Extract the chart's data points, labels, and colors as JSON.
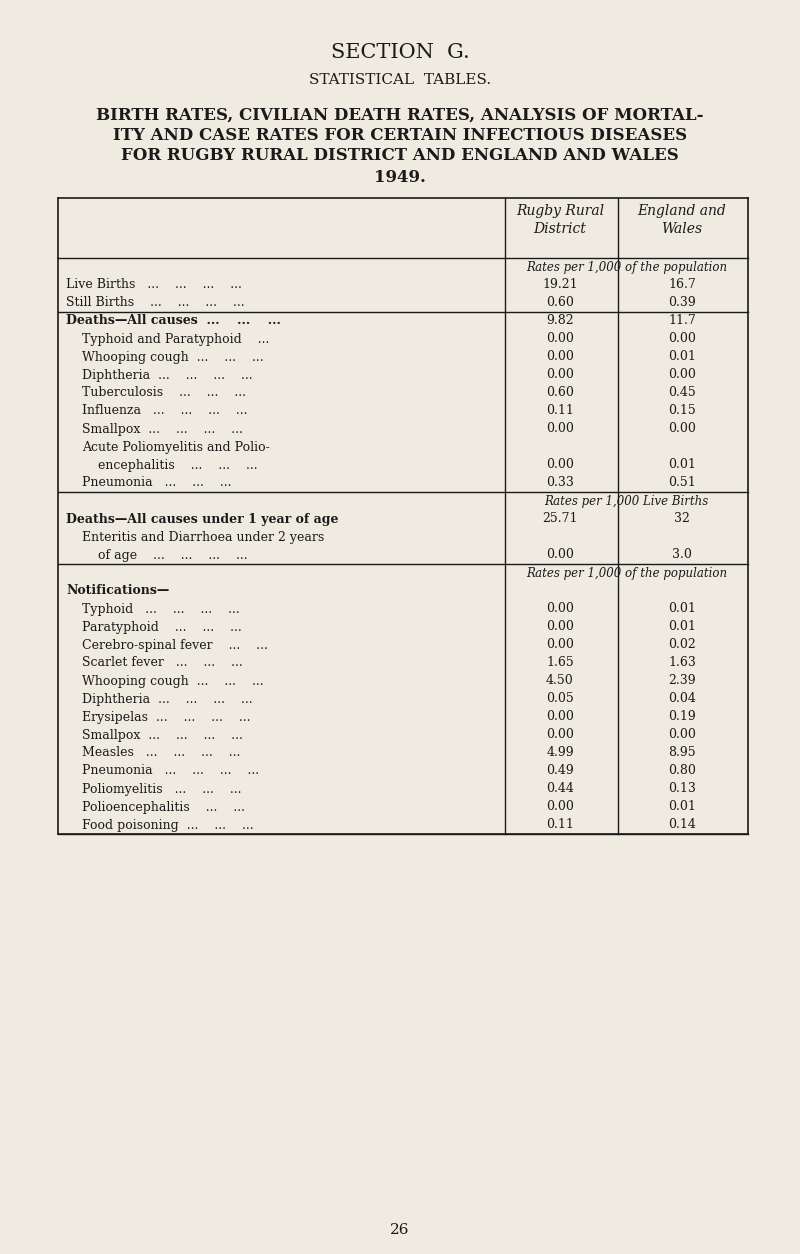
{
  "section_title": "SECTION  G.",
  "section_subtitle": "STATISTICAL  TABLES.",
  "main_title_line1": "BIRTH RATES, CIVILIAN DEATH RATES, ANALYSIS OF MORTAL-",
  "main_title_line2": "ITY AND CASE RATES FOR CERTAIN INFECTIOUS DISEASES",
  "main_title_line3": "FOR RUGBY RURAL DISTRICT AND ENGLAND AND WALES",
  "main_title_line4": "1949.",
  "col_header1": "Rugby Rural\nDistrict",
  "col_header2": "England and\nWales",
  "background_color": "#f0ebe0",
  "text_color": "#1a1a1a",
  "page_number": "26",
  "sections": [
    {
      "header_text": "Rates per 1,000 of the population",
      "rows": [
        {
          "label": "Live Births   ...    ...    ...    ...",
          "bold": false,
          "indent": 0,
          "v1": "19.21",
          "v2": "16.7"
        },
        {
          "label": "Still Births    ...    ...    ...    ...",
          "bold": false,
          "indent": 0,
          "v1": "0.60",
          "v2": "0.39"
        }
      ]
    },
    {
      "header_text": null,
      "rows": [
        {
          "label": "Deaths—All causes  ...    ...    ...",
          "bold": true,
          "indent": 0,
          "v1": "9.82",
          "v2": "11.7"
        },
        {
          "label": "Typhoid and Paratyphoid    ...",
          "bold": false,
          "indent": 1,
          "v1": "0.00",
          "v2": "0.00"
        },
        {
          "label": "Whooping cough  ...    ...    ...",
          "bold": false,
          "indent": 1,
          "v1": "0.00",
          "v2": "0.01"
        },
        {
          "label": "Diphtheria  ...    ...    ...    ...",
          "bold": false,
          "indent": 1,
          "v1": "0.00",
          "v2": "0.00"
        },
        {
          "label": "Tuberculosis    ...    ...    ...",
          "bold": false,
          "indent": 1,
          "v1": "0.60",
          "v2": "0.45"
        },
        {
          "label": "Influenza   ...    ...    ...    ...",
          "bold": false,
          "indent": 1,
          "v1": "0.11",
          "v2": "0.15"
        },
        {
          "label": "Smallpox  ...    ...    ...    ...",
          "bold": false,
          "indent": 1,
          "v1": "0.00",
          "v2": "0.00"
        },
        {
          "label": "Acute Poliomyelitis and Polio-",
          "bold": false,
          "indent": 1,
          "v1": "",
          "v2": ""
        },
        {
          "label": "encephalitis    ...    ...    ...",
          "bold": false,
          "indent": 2,
          "v1": "0.00",
          "v2": "0.01"
        },
        {
          "label": "Pneumonia   ...    ...    ...",
          "bold": false,
          "indent": 1,
          "v1": "0.33",
          "v2": "0.51"
        }
      ]
    },
    {
      "header_text": "Rates per 1,000 Live Births",
      "rows": [
        {
          "label": "Deaths—All causes under 1 year of age",
          "bold": true,
          "indent": 0,
          "v1": "25.71",
          "v2": "32"
        },
        {
          "label": "Enteritis and Diarrhoea under 2 years",
          "bold": false,
          "indent": 1,
          "v1": "",
          "v2": ""
        },
        {
          "label": "of age    ...    ...    ...    ...",
          "bold": false,
          "indent": 2,
          "v1": "0.00",
          "v2": "3.0"
        }
      ]
    },
    {
      "header_text": "Rates per 1,000 of the population",
      "rows": [
        {
          "label": "Notifications—",
          "bold": true,
          "indent": 0,
          "v1": "",
          "v2": ""
        },
        {
          "label": "Typhoid   ...    ...    ...    ...",
          "bold": false,
          "indent": 1,
          "v1": "0.00",
          "v2": "0.01"
        },
        {
          "label": "Paratyphoid    ...    ...    ...",
          "bold": false,
          "indent": 1,
          "v1": "0.00",
          "v2": "0.01"
        },
        {
          "label": "Cerebro-spinal fever    ...    ...",
          "bold": false,
          "indent": 1,
          "v1": "0.00",
          "v2": "0.02"
        },
        {
          "label": "Scarlet fever   ...    ...    ...",
          "bold": false,
          "indent": 1,
          "v1": "1.65",
          "v2": "1.63"
        },
        {
          "label": "Whooping cough  ...    ...    ...",
          "bold": false,
          "indent": 1,
          "v1": "4.50",
          "v2": "2.39"
        },
        {
          "label": "Diphtheria  ...    ...    ...    ...",
          "bold": false,
          "indent": 1,
          "v1": "0.05",
          "v2": "0.04"
        },
        {
          "label": "Erysipelas  ...    ...    ...    ...",
          "bold": false,
          "indent": 1,
          "v1": "0.00",
          "v2": "0.19"
        },
        {
          "label": "Smallpox  ...    ...    ...    ...",
          "bold": false,
          "indent": 1,
          "v1": "0.00",
          "v2": "0.00"
        },
        {
          "label": "Measles   ...    ...    ...    ...",
          "bold": false,
          "indent": 1,
          "v1": "4.99",
          "v2": "8.95"
        },
        {
          "label": "Pneumonia   ...    ...    ...    ...",
          "bold": false,
          "indent": 1,
          "v1": "0.49",
          "v2": "0.80"
        },
        {
          "label": "Poliomyelitis   ...    ...    ...",
          "bold": false,
          "indent": 1,
          "v1": "0.44",
          "v2": "0.13"
        },
        {
          "label": "Polioencephalitis    ...    ...",
          "bold": false,
          "indent": 1,
          "v1": "0.00",
          "v2": "0.01"
        },
        {
          "label": "Food poisoning  ...    ...    ...",
          "bold": false,
          "indent": 1,
          "v1": "0.11",
          "v2": "0.14"
        }
      ]
    }
  ]
}
